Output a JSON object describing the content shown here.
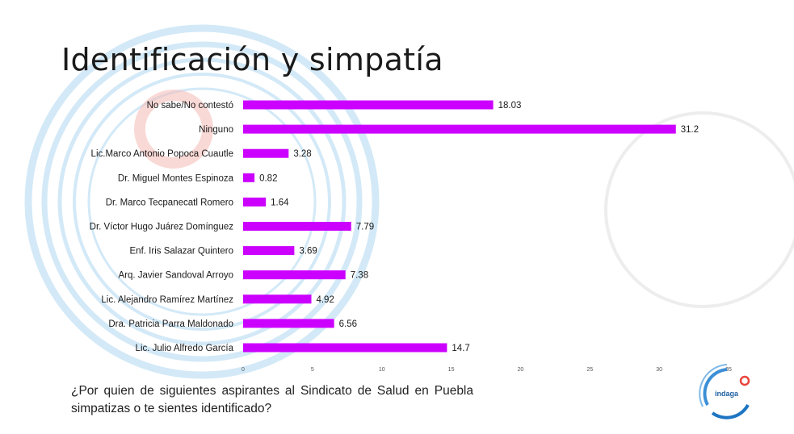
{
  "slide": {
    "title": "Identificación y simpatía",
    "question": "¿Por quien de siguientes aspirantes al Sindicato de Salud en Puebla simpatizas o te sientes identificado?"
  },
  "logo": {
    "text": "indaga",
    "icon": "indaga-logo-icon"
  },
  "colors": {
    "bar": "#cc00ff",
    "accent_blue": "#1d75c2",
    "accent_red": "#e8453c",
    "text": "#1a1a1a"
  },
  "chart_data": {
    "type": "bar",
    "orientation": "horizontal",
    "categories": [
      "No sabe/No  contestó",
      "Ninguno",
      "Lic.Marco Antonio Popoca Cuautle",
      "Dr. Miguel Montes Espinoza",
      "Dr. Marco Tecpanecatl Romero",
      "Dr. Víctor Hugo Juárez Domínguez",
      "Enf. Iris Salazar Quintero",
      "Arq. Javier Sandoval Arroyo",
      "Lic. Alejandro Ramírez Martínez",
      "Dra. Patricia Parra Maldonado",
      "Lic. Julio Alfredo García"
    ],
    "values": [
      18.03,
      31.2,
      3.28,
      0.82,
      1.64,
      7.79,
      3.69,
      7.38,
      4.92,
      6.56,
      14.7
    ],
    "value_labels": [
      "18.03",
      "31.2",
      "3.28",
      "0.82",
      "1.64",
      "7.79",
      "3.69",
      "7.38",
      "4.92",
      "6.56",
      "14.7"
    ],
    "xticks": [
      "0",
      "5",
      "10",
      "15",
      "20",
      "25",
      "30",
      "35"
    ],
    "xlim": [
      0,
      35
    ],
    "grid": false,
    "legend": "none"
  }
}
